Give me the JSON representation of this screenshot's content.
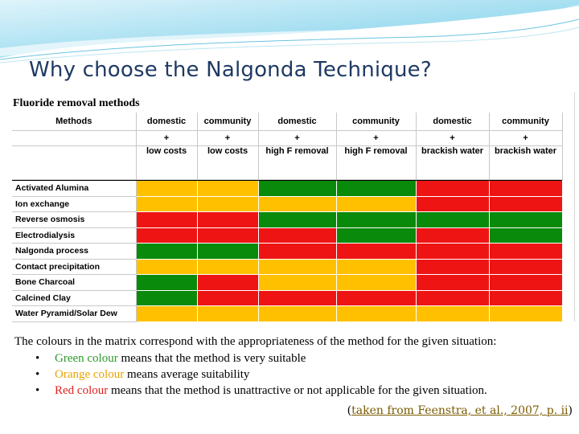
{
  "slide": {
    "title": "Why choose the Nalgonda Technique?"
  },
  "table": {
    "title": "Fluoride removal methods",
    "methods_header": "Methods",
    "columns": [
      {
        "line1": "domestic",
        "plus": "+",
        "line2": "low costs"
      },
      {
        "line1": "community",
        "plus": "+",
        "line2": "low costs"
      },
      {
        "line1": "domestic",
        "plus": "+",
        "line2": "high F removal"
      },
      {
        "line1": "community",
        "plus": "+",
        "line2": "high F removal"
      },
      {
        "line1": "domestic",
        "plus": "+",
        "line2": "brackish water"
      },
      {
        "line1": "community",
        "plus": "+",
        "line2": "brackish water"
      }
    ],
    "rows": [
      {
        "method": "Activated Alumina",
        "ratings": [
          "orange",
          "orange",
          "green",
          "green",
          "red",
          "red"
        ]
      },
      {
        "method": "Ion exchange",
        "ratings": [
          "orange",
          "orange",
          "orange",
          "orange",
          "red",
          "red"
        ]
      },
      {
        "method": "Reverse osmosis",
        "ratings": [
          "red",
          "red",
          "green",
          "green",
          "green",
          "green"
        ]
      },
      {
        "method": "Electrodialysis",
        "ratings": [
          "red",
          "red",
          "red",
          "green",
          "red",
          "green"
        ]
      },
      {
        "method": "Nalgonda process",
        "ratings": [
          "green",
          "green",
          "red",
          "red",
          "red",
          "red"
        ]
      },
      {
        "method": "Contact precipitation",
        "ratings": [
          "orange",
          "orange",
          "orange",
          "orange",
          "red",
          "red"
        ]
      },
      {
        "method": "Bone Charcoal",
        "ratings": [
          "green",
          "red",
          "orange",
          "orange",
          "red",
          "red"
        ]
      },
      {
        "method": "Calcined Clay",
        "ratings": [
          "green",
          "red",
          "red",
          "red",
          "red",
          "red"
        ]
      },
      {
        "method": "Water Pyramid/Solar Dew",
        "ratings": [
          "orange",
          "orange",
          "orange",
          "orange",
          "orange",
          "orange"
        ]
      }
    ]
  },
  "legend": {
    "intro": "The colours in the matrix correspond with the appropriateness of the method for the given situation:",
    "bullet_glyph": "•",
    "items": [
      {
        "colored": "Green colour",
        "rest": " means that the method is very suitable",
        "color": "green"
      },
      {
        "colored": "Orange colour",
        "rest": " means average suitability",
        "color": "orange"
      },
      {
        "colored": "Red colour",
        "rest": " means that the method is unattractive or not applicable for the given situation.",
        "color": "red"
      }
    ]
  },
  "citation": {
    "open": "(",
    "link_text": "taken from Feenstra, et al., 2007, p. ii",
    "close": ")"
  },
  "colors": {
    "green": "#0a8a0a",
    "orange": "#ffc000",
    "red": "#ef1414",
    "title": "#1f3a63",
    "header_swoosh": "#7fd0ea"
  }
}
